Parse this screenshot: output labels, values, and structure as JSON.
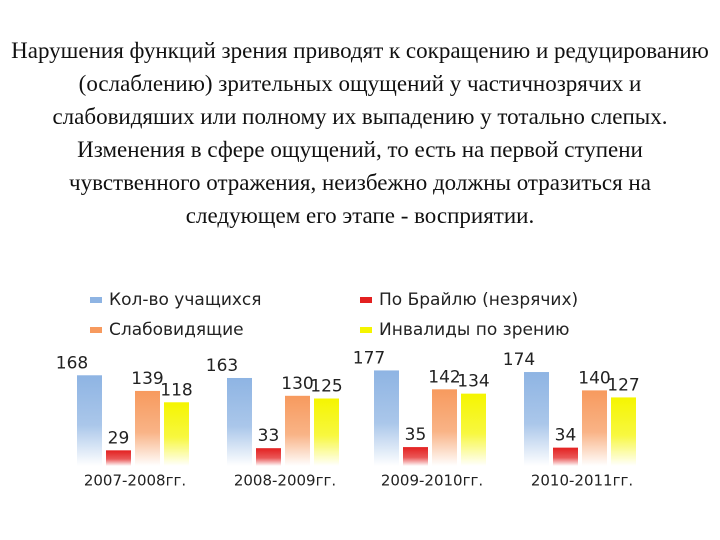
{
  "text": "Нарушения функций зрения приводят к сокращению и редуцированию (ослаблению) зрительных ощущений у частичнозрячих и слабовидяших или полному их выпадению у тотально слепых. Изменения в сфере ощущений, то есть на первой ступени чувственного отражения, неизбежно должны отразиться на следующем его этапе  - восприятии.",
  "chart_data": {
    "type": "bar",
    "categories": [
      "2007-2008гг.",
      "2008-2009гг.",
      "2009-2010гг.",
      "2010-2011гг."
    ],
    "series": [
      {
        "name": "Кол-во учащихся",
        "color": "#8eb4e3",
        "values": [
          168,
          163,
          177,
          174
        ]
      },
      {
        "name": "По Брайлю (незрячих)",
        "color": "#e32020",
        "values": [
          29,
          33,
          35,
          34
        ]
      },
      {
        "name": "Слабовидящие",
        "color": "#f79a5e",
        "values": [
          139,
          130,
          142,
          140
        ]
      },
      {
        "name": "Инвалиды по зрению",
        "color": "#f5f500",
        "values": [
          118,
          125,
          134,
          127
        ]
      }
    ]
  }
}
